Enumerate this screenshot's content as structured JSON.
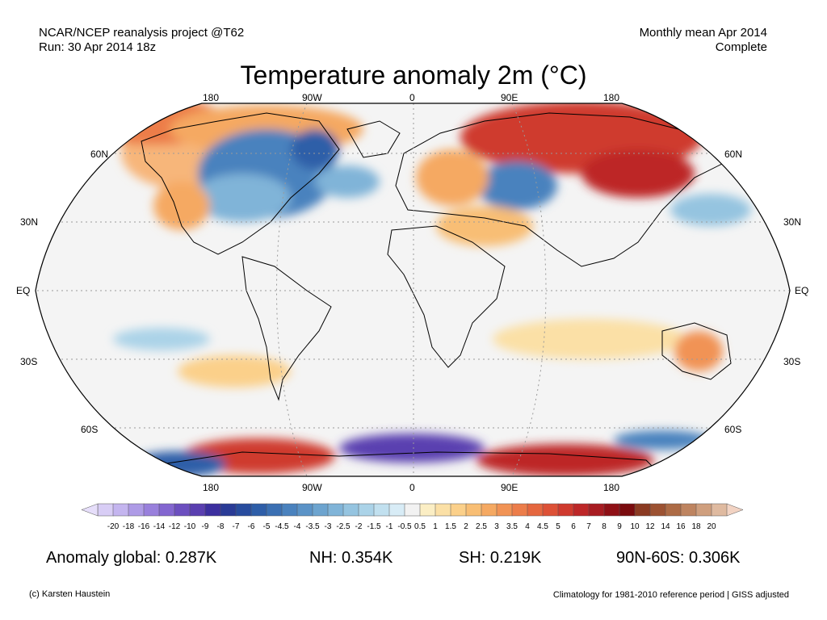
{
  "header": {
    "source_line": "NCAR/NCEP reanalysis project @T62",
    "run_line": "Run: 30 Apr 2014 18z",
    "period_line": "Monthly mean Apr 2014",
    "status_line": "Complete"
  },
  "title": "Temperature anomaly 2m (°C)",
  "map": {
    "projection": "robinson-like",
    "lon_labels_top": [
      "180",
      "90W",
      "0",
      "90E",
      "180"
    ],
    "lon_labels_bottom": [
      "180",
      "90W",
      "0",
      "90E",
      "180"
    ],
    "lat_labels": [
      "60N",
      "30N",
      "EQ",
      "30S",
      "60S"
    ],
    "anomaly_regions": [
      {
        "region": "North America east",
        "sign": "cold"
      },
      {
        "region": "Hudson Bay / Greenland west",
        "sign": "cold"
      },
      {
        "region": "Siberia / East Asia",
        "sign": "warm"
      },
      {
        "region": "Western Russia / Central Asia",
        "sign": "cold"
      },
      {
        "region": "Europe",
        "sign": "warm"
      },
      {
        "region": "Antarctica coast",
        "sign": "mixed"
      }
    ]
  },
  "colorbar": {
    "ticks": [
      "-20",
      "-18",
      "-16",
      "-14",
      "-12",
      "-10",
      "-9",
      "-8",
      "-7",
      "-6",
      "-5",
      "-4.5",
      "-4",
      "-3.5",
      "-3",
      "-2.5",
      "-2",
      "-1.5",
      "-1",
      "-0.5",
      "0.5",
      "1",
      "1.5",
      "2",
      "2.5",
      "3",
      "3.5",
      "4",
      "4.5",
      "5",
      "6",
      "7",
      "8",
      "9",
      "10",
      "12",
      "14",
      "16",
      "18",
      "20"
    ],
    "colors": [
      "#d8cdf5",
      "#c4b5ef",
      "#ae9be6",
      "#9980dc",
      "#8366d0",
      "#6c4fbf",
      "#5a3fb0",
      "#3c2f9f",
      "#2a3b96",
      "#284c9e",
      "#2e5ea8",
      "#3b70b3",
      "#4a82be",
      "#5b93c7",
      "#6da4cf",
      "#80b4d8",
      "#95c4e0",
      "#abd3e8",
      "#c1e0ef",
      "#d8ecf6",
      "#f2f2f2",
      "#fbeec4",
      "#fbe0a6",
      "#fbd08a",
      "#f8be74",
      "#f5a962",
      "#f19355",
      "#ec7d4a",
      "#e5673f",
      "#dd5136",
      "#cf3a2e",
      "#bd2728",
      "#a81c22",
      "#8f1016",
      "#7a0b0e",
      "#8b3a22",
      "#9c5232",
      "#ad6b45",
      "#be8460",
      "#cf9f7e",
      "#dfbaa0"
    ]
  },
  "stats": {
    "global": "Anomaly global: 0.287K",
    "nh": "NH: 0.354K",
    "sh": "SH: 0.219K",
    "band": "90N-60S: 0.306K"
  },
  "footer": {
    "credit": "(c) Karsten Haustein",
    "climatology": "Climatology for 1981-2010 reference period | GISS adjusted"
  }
}
